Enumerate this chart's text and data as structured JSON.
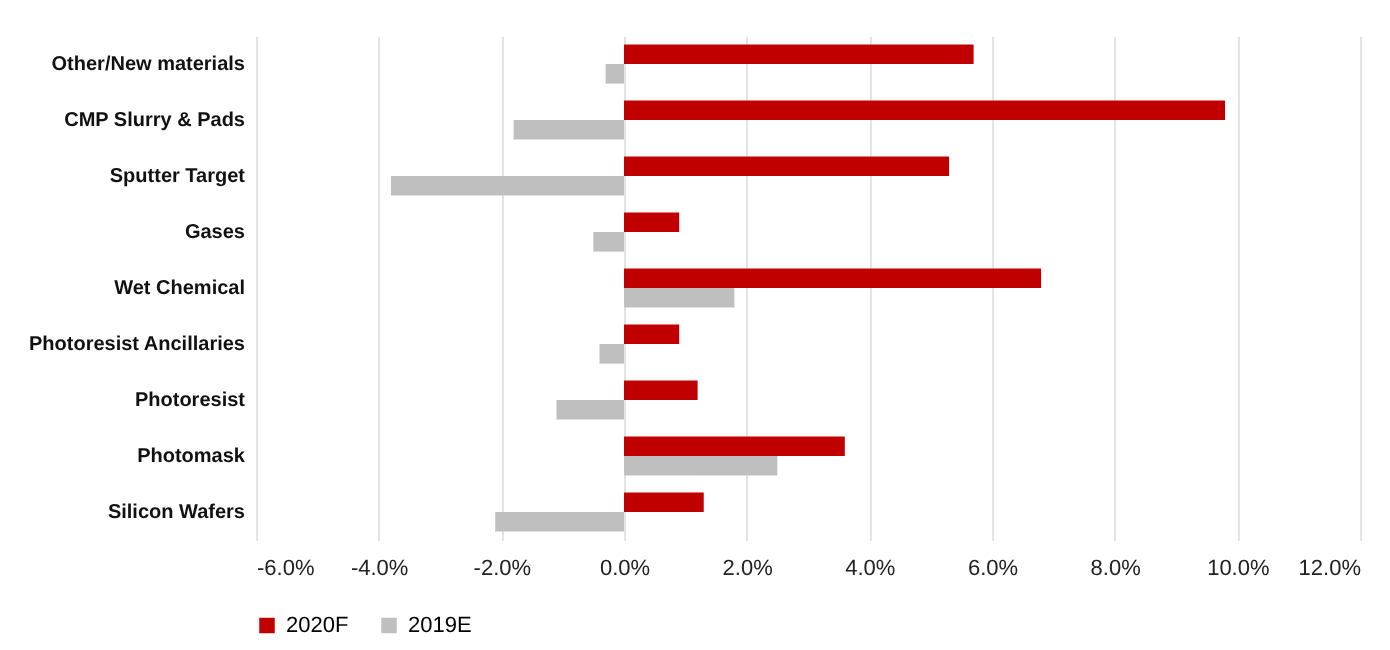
{
  "chart_data": {
    "type": "bar",
    "orientation": "horizontal",
    "categories": [
      "Other/New materials",
      "CMP Slurry & Pads",
      "Sputter Target",
      "Gases",
      "Wet Chemical",
      "Photoresist Ancillaries",
      "Photoresist",
      "Photomask",
      "Silicon Wafers"
    ],
    "series": [
      {
        "name": "2020F",
        "color": "#c00000",
        "values": [
          5.7,
          9.8,
          5.3,
          0.9,
          6.8,
          0.9,
          1.2,
          3.6,
          1.3
        ]
      },
      {
        "name": "2019E",
        "color": "#bfbfbf",
        "values": [
          -0.3,
          -1.8,
          -3.8,
          -0.5,
          1.8,
          -0.4,
          -1.1,
          2.5,
          -2.1
        ]
      }
    ],
    "xlim": [
      -6,
      12
    ],
    "xticks": [
      {
        "value": -6,
        "label": "-6.0%"
      },
      {
        "value": -4,
        "label": "-4.0%"
      },
      {
        "value": -2,
        "label": "-2.0%"
      },
      {
        "value": 0,
        "label": "0.0%"
      },
      {
        "value": 2,
        "label": "2.0%"
      },
      {
        "value": 4,
        "label": "4.0%"
      },
      {
        "value": 6,
        "label": "6.0%"
      },
      {
        "value": 8,
        "label": "8.0%"
      },
      {
        "value": 10,
        "label": "10.0%"
      },
      {
        "value": 12,
        "label": "12.0%"
      }
    ],
    "grid": "x",
    "legend": "bottom"
  }
}
